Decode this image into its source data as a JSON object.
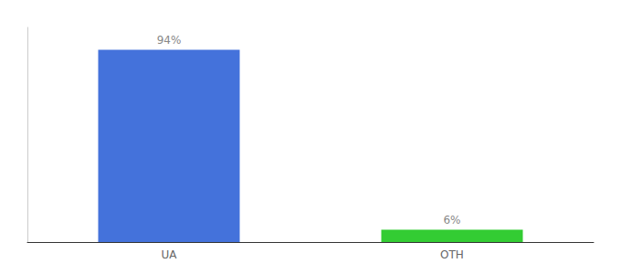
{
  "chart_data": {
    "type": "bar",
    "categories": [
      "UA",
      "OTH"
    ],
    "values": [
      94,
      6
    ],
    "value_labels": [
      "94%",
      "6%"
    ],
    "data_labels": true,
    "colors": [
      "#4472DB",
      "#33CC33"
    ],
    "ylim": [
      0,
      105
    ],
    "tick_labels": "x",
    "grid": false
  }
}
